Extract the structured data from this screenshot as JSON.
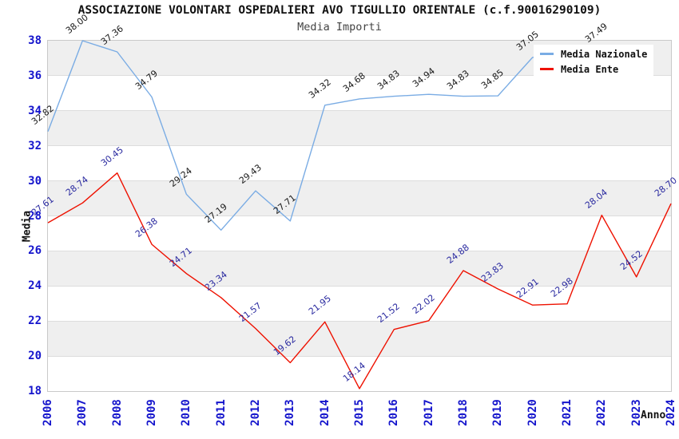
{
  "header": {
    "title": "ASSOCIAZIONE VOLONTARI OSPEDALIERI AVO TIGULLIO ORIENTALE (c.f.90016290109)",
    "subtitle": "Media Importi"
  },
  "axes": {
    "y_label": "Media",
    "x_label": "Anno"
  },
  "legend": {
    "items": [
      {
        "label": "Media Nazionale",
        "color": "#7aace4"
      },
      {
        "label": "Media Ente",
        "color": "#ee1100"
      }
    ]
  },
  "colors": {
    "tick_blue": "#1414cc",
    "band_gray": "#efefef",
    "plot_border": "#c9c9c9",
    "blue_series_label": "#1a1a1a",
    "red_series_label": "#2a2aa0"
  },
  "chart_data": {
    "type": "line",
    "title": "ASSOCIAZIONE VOLONTARI OSPEDALIERI AVO TIGULLIO ORIENTALE (c.f.90016290109)",
    "subtitle": "Media Importi",
    "xlabel": "Anno",
    "ylabel": "Media",
    "ylim": [
      18,
      38
    ],
    "y_tick_step": 2,
    "grid": "horizontal-bands",
    "legend_position": "top-right",
    "x": [
      "2006",
      "2007",
      "2008",
      "2009",
      "2010",
      "2011",
      "2012",
      "2013",
      "2014",
      "2015",
      "2016",
      "2017",
      "2018",
      "2019",
      "2020",
      "2021",
      "2022",
      "2023",
      "2024"
    ],
    "series": [
      {
        "name": "Media Nazionale",
        "color": "#7aace4",
        "label_color": "#1a1a1a",
        "values": [
          32.82,
          38.0,
          37.36,
          34.79,
          29.24,
          27.19,
          29.43,
          27.71,
          34.32,
          34.68,
          34.83,
          34.94,
          34.83,
          34.85,
          37.05,
          null,
          37.49,
          null,
          null
        ]
      },
      {
        "name": "Media Ente",
        "color": "#ee1100",
        "label_color": "#2a2aa0",
        "values": [
          27.61,
          28.74,
          30.45,
          26.38,
          24.71,
          23.34,
          21.57,
          19.62,
          21.95,
          18.14,
          21.52,
          22.02,
          24.88,
          23.83,
          22.91,
          22.98,
          28.04,
          24.52,
          28.7
        ]
      }
    ]
  }
}
